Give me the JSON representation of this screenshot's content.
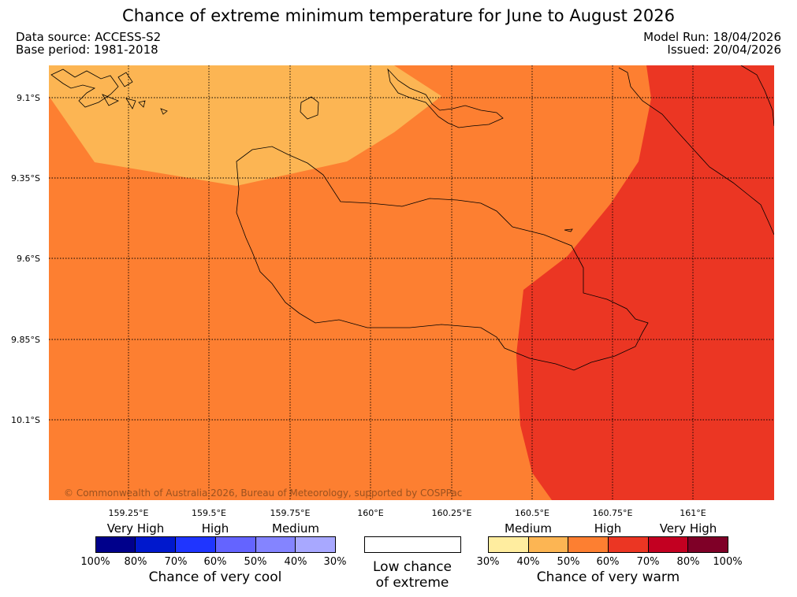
{
  "header": {
    "title": "Chance of extreme minimum temperature for June to August 2026",
    "data_source": "Data source: ACCESS-S2",
    "base_period": "Base period: 1981-2018",
    "model_run": "Model Run: 18/04/2026",
    "issued": "Issued: 20/04/2026"
  },
  "map": {
    "lat_labels": [
      "9.1°S",
      "9.35°S",
      "9.6°S",
      "9.85°S",
      "10.1°S"
    ],
    "lon_labels": [
      "159.25°E",
      "159.5°E",
      "159.75°E",
      "160°E",
      "160.25°E",
      "160.5°E",
      "160.75°E",
      "161°E"
    ],
    "copyright": "© Commonwealth of Australia 2026, Bureau of Meteorology, supported by COSPPac",
    "colors": {
      "forty_to_fifty": "#fcb553",
      "fifty_to_sixty": "#fd7f31",
      "sixty_to_seventy": "#eb3623"
    }
  },
  "legend": {
    "cool": {
      "headings": [
        "Very High",
        "High",
        "Medium"
      ],
      "colors": [
        "#00008b",
        "#0018cd",
        "#1f35ff",
        "#6464ff",
        "#8484ff",
        "#a8a8ff"
      ],
      "percent_labels": [
        "100%",
        "80%",
        "70%",
        "60%",
        "50%",
        "40%",
        "30%"
      ],
      "caption": "Chance of very cool"
    },
    "low": {
      "caption_line1": "Low chance",
      "caption_line2": "of extreme"
    },
    "warm": {
      "headings": [
        "Medium",
        "High",
        "Very High"
      ],
      "colors": [
        "#ffed9f",
        "#fcb553",
        "#fd7f31",
        "#eb3623",
        "#c30021",
        "#7f0027"
      ],
      "percent_labels": [
        "30%",
        "40%",
        "50%",
        "60%",
        "70%",
        "80%",
        "100%"
      ],
      "caption": "Chance of very warm"
    }
  }
}
